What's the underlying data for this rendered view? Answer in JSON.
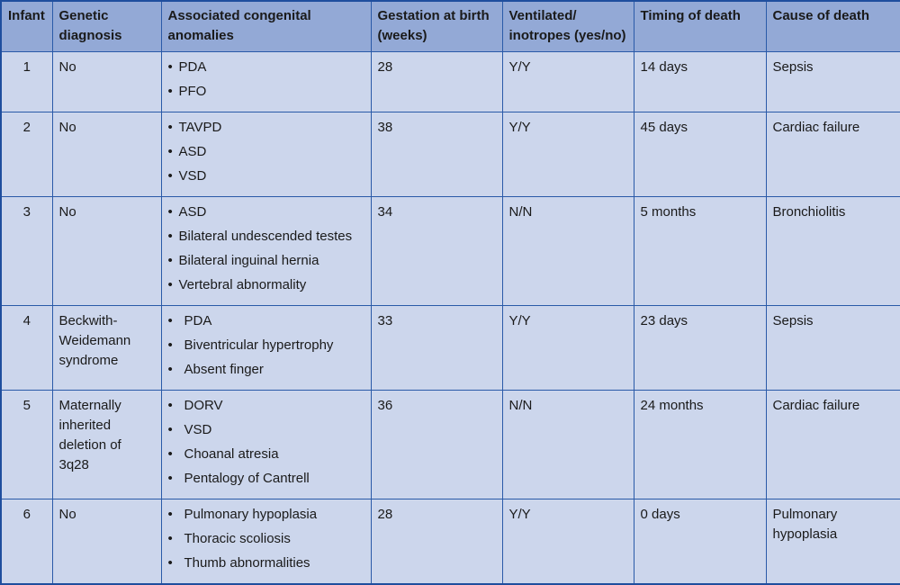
{
  "headers": {
    "infant": "Infant",
    "genetic": "Genetic diagnosis",
    "anomalies": "Associated congenital anomalies",
    "gestation": "Gestation at birth (weeks)",
    "ventilated": "Ventilated/ inotropes (yes/no)",
    "timing": "Timing of death",
    "cause": "Cause of death"
  },
  "bullet": "•",
  "rows": [
    {
      "infant": "1",
      "genetic": "No",
      "anomalies": [
        "PDA",
        "PFO"
      ],
      "gestation": "28",
      "ventilated": "Y/Y",
      "timing": "14 days",
      "cause": "Sepsis"
    },
    {
      "infant": "2",
      "genetic": "No",
      "anomalies": [
        "TAVPD",
        "ASD",
        "VSD"
      ],
      "gestation": "38",
      "ventilated": "Y/Y",
      "timing": "45 days",
      "cause": "Cardiac failure"
    },
    {
      "infant": "3",
      "genetic": "No",
      "anomalies": [
        "ASD",
        "Bilateral undescended testes",
        "Bilateral inguinal hernia",
        "Vertebral abnormality"
      ],
      "gestation": "34",
      "ventilated": "N/N",
      "timing": "5 months",
      "cause": "Bronchiolitis"
    },
    {
      "infant": "4",
      "genetic": "Beckwith-Weidemann syndrome",
      "anomalies": [
        "PDA",
        "Biventricular hypertrophy",
        "Absent finger"
      ],
      "gestation": "33",
      "ventilated": "Y/Y",
      "timing": "23 days",
      "cause": "Sepsis"
    },
    {
      "infant": "5",
      "genetic": "Maternally inherited deletion of 3q28",
      "anomalies": [
        "DORV",
        "VSD",
        "Choanal atresia",
        "Pentalogy of Cantrell"
      ],
      "gestation": "36",
      "ventilated": "N/N",
      "timing": "24 months",
      "cause": "Cardiac failure"
    },
    {
      "infant": "6",
      "genetic": "No",
      "anomalies": [
        "Pulmonary hypoplasia",
        "Thoracic scoliosis",
        "Thumb abnormalities"
      ],
      "gestation": "28",
      "ventilated": "Y/Y",
      "timing": "0 days",
      "cause": "Pulmonary hypoplasia"
    }
  ]
}
